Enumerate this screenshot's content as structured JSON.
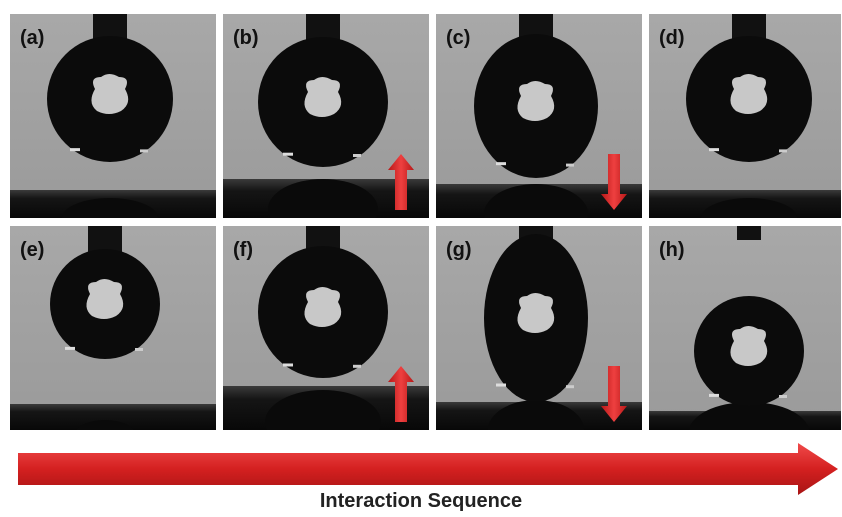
{
  "panels": [
    {
      "label": "(a)"
    },
    {
      "label": "(b)"
    },
    {
      "label": "(c)"
    },
    {
      "label": "(d)"
    },
    {
      "label": "(e)"
    },
    {
      "label": "(f)"
    },
    {
      "label": "(g)"
    },
    {
      "label": "(h)"
    }
  ],
  "caption": "Interaction Sequence"
}
